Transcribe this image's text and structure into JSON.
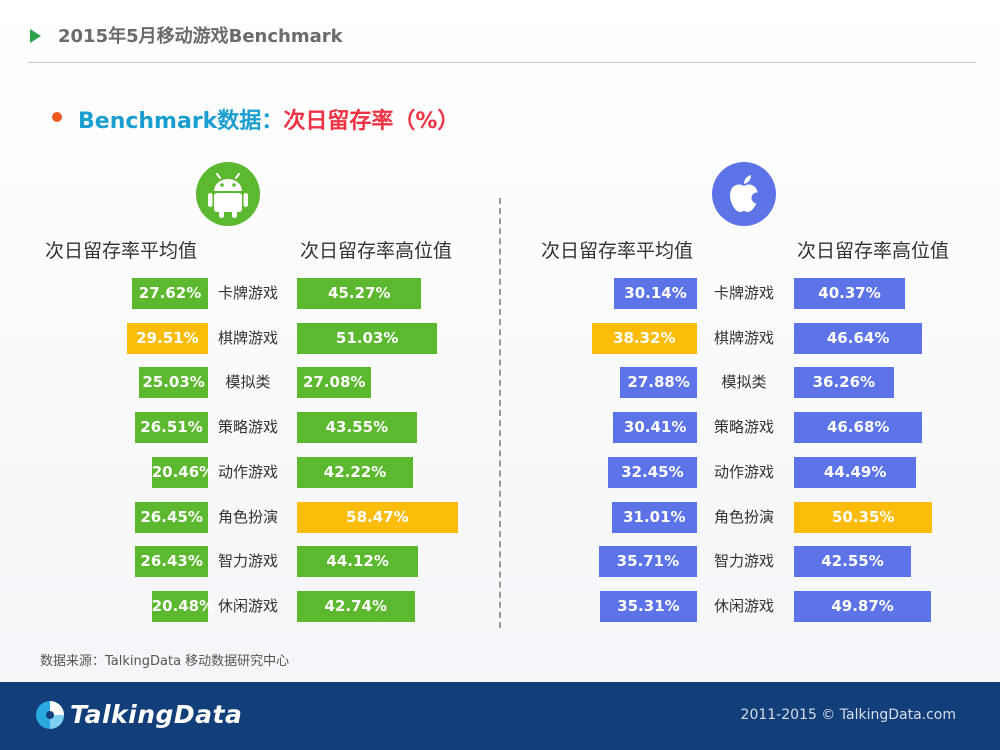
{
  "header": {
    "title": "2015年5月移动游戏Benchmark"
  },
  "subtitle": {
    "part1": "Benchmark数据：",
    "part2": "次日留存率（%）"
  },
  "android": {
    "avg_header": "次日留存率平均值",
    "high_header": "次日留存率高位值",
    "bar_color": "#5cb82e",
    "highlight_color": "#fbbd0a"
  },
  "ios": {
    "avg_header": "次日留存率平均值",
    "high_header": "次日留存率高位值",
    "bar_color": "#5d73e8",
    "highlight_color": "#fbbd0a"
  },
  "chart_data": [
    {
      "type": "bar",
      "platform": "android-icon",
      "categories": [
        "卡牌游戏",
        "棋牌游戏",
        "模拟类",
        "策略游戏",
        "动作游戏",
        "角色扮演",
        "智力游戏",
        "休闲游戏"
      ],
      "series": [
        {
          "name": "次日留存率平均值",
          "values": [
            27.62,
            29.51,
            25.03,
            26.51,
            20.46,
            26.45,
            26.43,
            20.48
          ],
          "labels": [
            "27.62%",
            "29.51%",
            "25.03%",
            "26.51%",
            "20.46%",
            "26.45%",
            "26.43%",
            "20.48%"
          ],
          "highlight_index": 1
        },
        {
          "name": "次日留存率高位值",
          "values": [
            45.27,
            51.03,
            27.08,
            43.55,
            42.22,
            58.47,
            44.12,
            42.74
          ],
          "labels": [
            "45.27%",
            "51.03%",
            "27.08%",
            "43.55%",
            "42.22%",
            "58.47%",
            "44.12%",
            "42.74%"
          ],
          "highlight_index": 5
        }
      ]
    },
    {
      "type": "bar",
      "platform": "apple-icon",
      "categories": [
        "卡牌游戏",
        "棋牌游戏",
        "模拟类",
        "策略游戏",
        "动作游戏",
        "角色扮演",
        "智力游戏",
        "休闲游戏"
      ],
      "series": [
        {
          "name": "次日留存率平均值",
          "values": [
            30.14,
            38.32,
            27.88,
            30.41,
            32.45,
            31.01,
            35.71,
            35.31
          ],
          "labels": [
            "30.14%",
            "38.32%",
            "27.88%",
            "30.41%",
            "32.45%",
            "31.01%",
            "35.71%",
            "35.31%"
          ],
          "highlight_index": 1
        },
        {
          "name": "次日留存率高位值",
          "values": [
            40.37,
            46.64,
            36.26,
            46.68,
            44.49,
            50.35,
            42.55,
            49.87
          ],
          "labels": [
            "40.37%",
            "46.64%",
            "36.26%",
            "46.68%",
            "44.49%",
            "50.35%",
            "42.55%",
            "49.87%"
          ],
          "highlight_index": 5
        }
      ]
    }
  ],
  "source": "数据来源：TalkingData 移动数据研究中心",
  "footer": {
    "logo_text": "TalkingData",
    "copyright": "2011-2015 © TalkingData.com"
  }
}
